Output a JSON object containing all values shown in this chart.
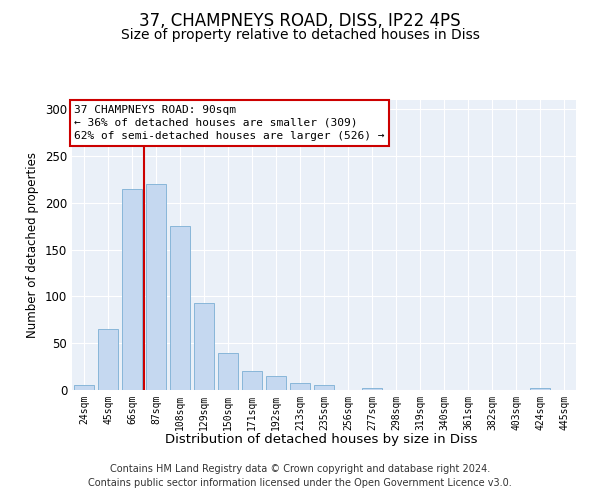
{
  "title": "37, CHAMPNEYS ROAD, DISS, IP22 4PS",
  "subtitle": "Size of property relative to detached houses in Diss",
  "xlabel": "Distribution of detached houses by size in Diss",
  "ylabel": "Number of detached properties",
  "categories": [
    "24sqm",
    "45sqm",
    "66sqm",
    "87sqm",
    "108sqm",
    "129sqm",
    "150sqm",
    "171sqm",
    "192sqm",
    "213sqm",
    "235sqm",
    "256sqm",
    "277sqm",
    "298sqm",
    "319sqm",
    "340sqm",
    "361sqm",
    "382sqm",
    "403sqm",
    "424sqm",
    "445sqm"
  ],
  "values": [
    5,
    65,
    215,
    220,
    175,
    93,
    40,
    20,
    15,
    7,
    5,
    0,
    2,
    0,
    0,
    0,
    0,
    0,
    0,
    2,
    0
  ],
  "bar_color": "#c5d8f0",
  "bar_edge_color": "#7bafd4",
  "vline_color": "#cc0000",
  "annotation_line1": "37 CHAMPNEYS ROAD: 90sqm",
  "annotation_line2": "← 36% of detached houses are smaller (309)",
  "annotation_line3": "62% of semi-detached houses are larger (526) →",
  "annotation_box_color": "white",
  "annotation_box_edge_color": "#cc0000",
  "footer_text": "Contains HM Land Registry data © Crown copyright and database right 2024.\nContains public sector information licensed under the Open Government Licence v3.0.",
  "ylim": [
    0,
    310
  ],
  "yticks": [
    0,
    50,
    100,
    150,
    200,
    250,
    300
  ],
  "bg_color": "#eaf0f8",
  "title_fontsize": 12,
  "subtitle_fontsize": 10,
  "footer_fontsize": 7
}
